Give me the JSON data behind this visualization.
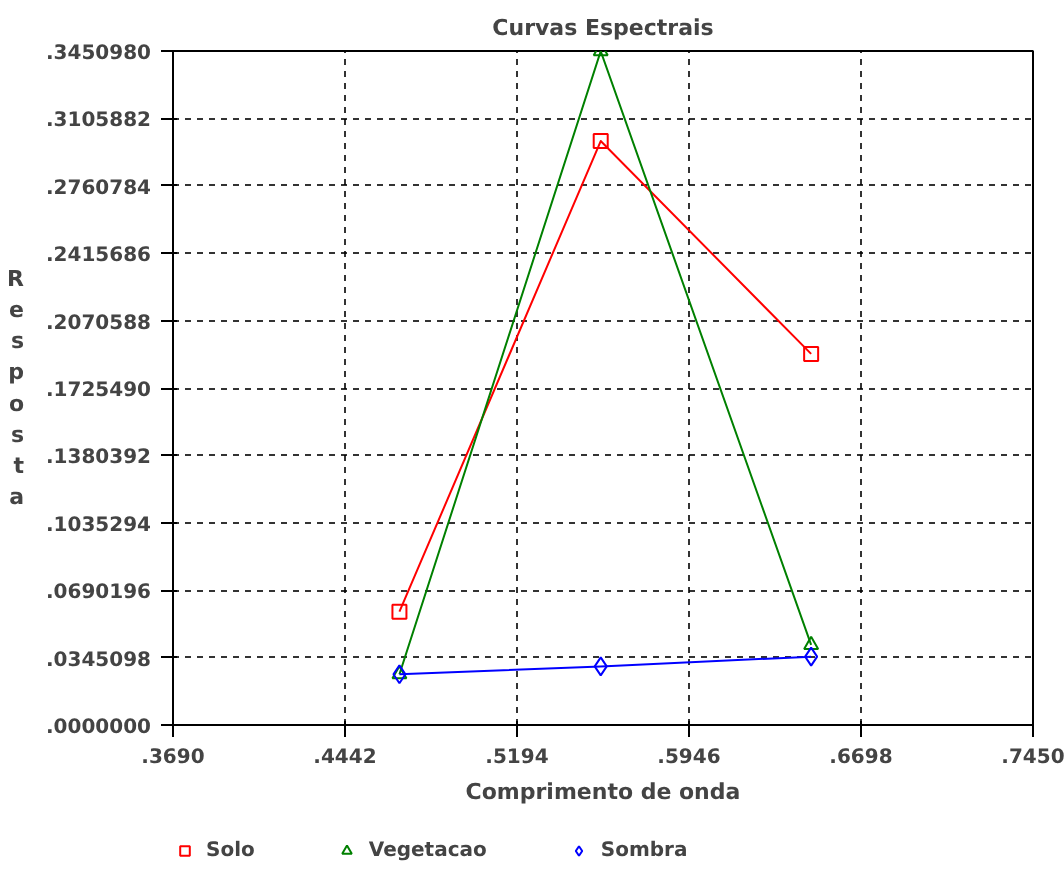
{
  "chart_data": {
    "type": "line",
    "title": "Curvas Espectrais",
    "xlabel": "Comprimento de onda",
    "ylabel": "Resposta",
    "xlim": [
      0.369,
      0.745
    ],
    "xticks": [
      {
        "value": 0.369,
        "label": ".3690"
      },
      {
        "value": 0.4442,
        "label": ".4442"
      },
      {
        "value": 0.5194,
        "label": ".5194"
      },
      {
        "value": 0.5946,
        "label": ".5946"
      },
      {
        "value": 0.6698,
        "label": ".6698"
      },
      {
        "value": 0.745,
        "label": ".7450"
      }
    ],
    "ylim": [
      0,
      0.345098
    ],
    "yticks": [
      {
        "value": 0,
        "label": ".0000000"
      },
      {
        "value": 0.0345098,
        "label": ".0345098"
      },
      {
        "value": 0.0690196,
        "label": ".0690196"
      },
      {
        "value": 0.1035294,
        "label": ".1035294"
      },
      {
        "value": 0.1380392,
        "label": ".1380392"
      },
      {
        "value": 0.172549,
        "label": ".1725490"
      },
      {
        "value": 0.2070588,
        "label": ".2070588"
      },
      {
        "value": 0.2415686,
        "label": ".2415686"
      },
      {
        "value": 0.2760784,
        "label": ".2760784"
      },
      {
        "value": 0.3105882,
        "label": ".3105882"
      },
      {
        "value": 0.345098,
        "label": ".3450980"
      }
    ],
    "x": [
      0.468,
      0.556,
      0.648
    ],
    "series": [
      {
        "name": "Solo",
        "color": "#ff0000",
        "marker": "square",
        "values": [
          0.058,
          0.299,
          0.19
        ]
      },
      {
        "name": "Vegetacao",
        "color": "#008000",
        "marker": "triangle",
        "values": [
          0.026,
          0.345,
          0.041
        ]
      },
      {
        "name": "Sombra",
        "color": "#0000ff",
        "marker": "diamond",
        "values": [
          0.026,
          0.03,
          0.035
        ]
      }
    ],
    "grid": true,
    "legend": "bottom left"
  }
}
